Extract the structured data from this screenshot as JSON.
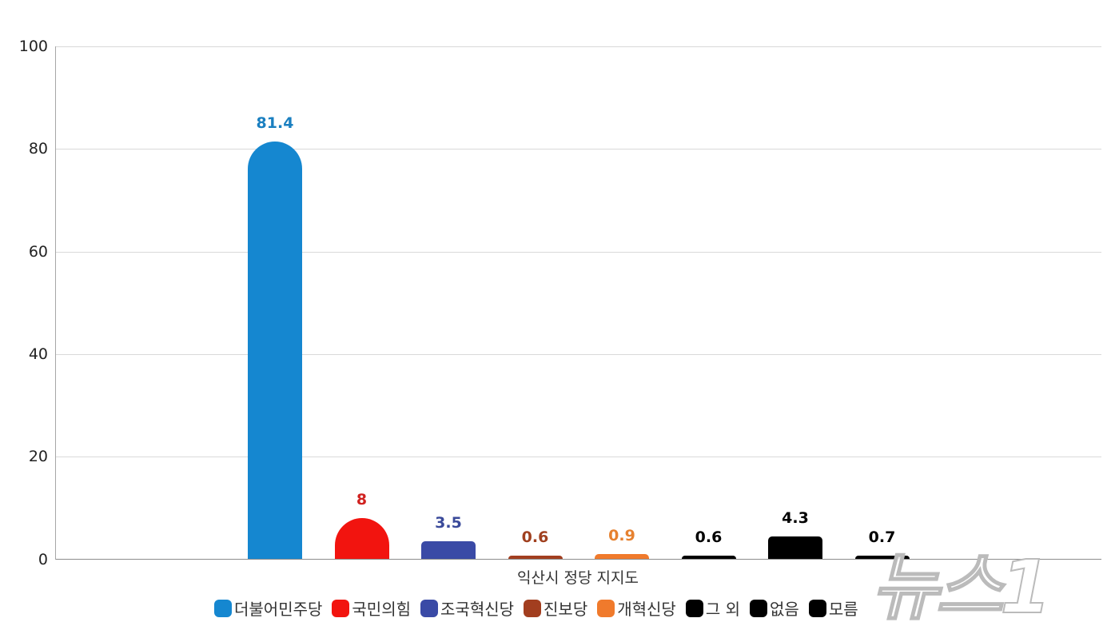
{
  "chart_data": {
    "type": "bar",
    "title": "",
    "xlabel": "익산시 정당 지지도",
    "ylabel": "",
    "ylim": [
      0,
      100
    ],
    "yticks": [
      0,
      20,
      40,
      60,
      80,
      100
    ],
    "grid": true,
    "legend_position": "bottom",
    "categories": [
      "더불어민주당",
      "국민의힘",
      "조국혁신당",
      "진보당",
      "개혁신당",
      "그 외",
      "없음",
      "모름"
    ],
    "values": [
      81.4,
      8,
      3.5,
      0.6,
      0.9,
      0.6,
      4.3,
      0.7
    ],
    "value_labels": [
      "81.4",
      "8",
      "3.5",
      "0.6",
      "0.9",
      "0.6",
      "4.3",
      "0.7"
    ],
    "colors": [
      "#1587d0",
      "#f2140f",
      "#3a4aa6",
      "#a23e1f",
      "#f07a2c",
      "#000000",
      "#000000",
      "#000000"
    ],
    "label_colors": [
      "#1a7fc0",
      "#d0211f",
      "#3a4a9a",
      "#a0401f",
      "#e6812f",
      "#000000",
      "#000000",
      "#000000"
    ]
  },
  "yaxis": {
    "ticks": [
      "100",
      "80",
      "60",
      "40",
      "20",
      "0"
    ]
  },
  "legend": [
    {
      "label": "더불어민주당",
      "color": "#1587d0"
    },
    {
      "label": "국민의힘",
      "color": "#f2140f"
    },
    {
      "label": "조국혁신당",
      "color": "#3a4aa6"
    },
    {
      "label": "진보당",
      "color": "#a23e1f"
    },
    {
      "label": "개혁신당",
      "color": "#f07a2c"
    },
    {
      "label": "그 외",
      "color": "#000000"
    },
    {
      "label": "없음",
      "color": "#000000"
    },
    {
      "label": "모름",
      "color": "#000000"
    }
  ],
  "watermark": "뉴스1"
}
